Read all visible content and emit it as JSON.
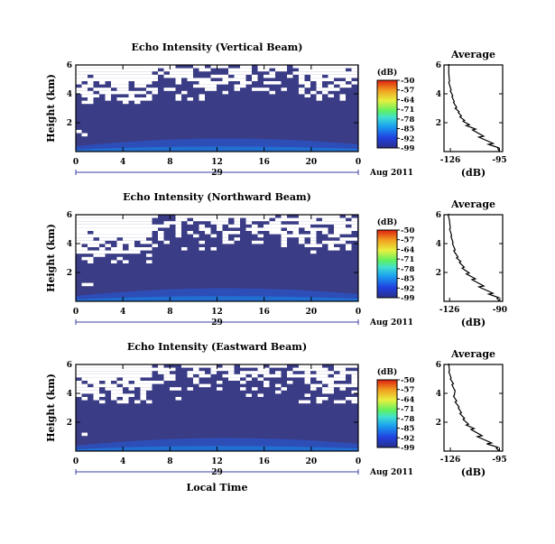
{
  "chart_data": [
    {
      "type": "heatmap",
      "title": "Echo Intensity (Vertical Beam)",
      "ylabel": "Height (km)",
      "xlabel": "",
      "x_ticks": [
        "0",
        "4",
        "8",
        "12",
        "16",
        "20",
        "0"
      ],
      "y_ticks": [
        "2",
        "4",
        "6"
      ],
      "xlim": [
        0,
        24
      ],
      "ylim": [
        0,
        6
      ],
      "date_center": "29",
      "date_right": "Aug 2011",
      "colorbar": {
        "unit": "(dB)",
        "ticks": [
          "-50",
          "-57",
          "-64",
          "-71",
          "-78",
          "-85",
          "-92",
          "-99"
        ],
        "range": [
          -99,
          -50
        ]
      },
      "field_color": "#3b3c86",
      "noise_color": "#ffffff",
      "average_profile": {
        "title": "Average",
        "xlabel": "(dB)",
        "x_ticks": [
          "-126",
          "-95"
        ],
        "y_ticks": [
          "2",
          "4",
          "6"
        ],
        "xlim": [
          -130,
          -93
        ],
        "ylim": [
          0,
          6
        ],
        "db": [
          -95,
          -96,
          -102,
          -108,
          -112,
          -116,
          -118,
          -120,
          -121,
          -123,
          -124,
          -125,
          -126,
          -127,
          -127,
          -127
        ],
        "height": [
          0.0,
          0.2,
          0.5,
          1.0,
          1.5,
          1.8,
          2.1,
          2.4,
          2.7,
          3.0,
          3.4,
          3.8,
          4.2,
          4.8,
          5.4,
          6.0
        ]
      }
    },
    {
      "type": "heatmap",
      "title": "Echo Intensity (Northward Beam)",
      "ylabel": "Height (km)",
      "xlabel": "",
      "x_ticks": [
        "0",
        "4",
        "8",
        "12",
        "16",
        "20",
        "0"
      ],
      "y_ticks": [
        "2",
        "4",
        "6"
      ],
      "xlim": [
        0,
        24
      ],
      "ylim": [
        0,
        6
      ],
      "date_center": "29",
      "date_right": "Aug 2011",
      "colorbar": {
        "unit": "(dB)",
        "ticks": [
          "-50",
          "-57",
          "-64",
          "-71",
          "-78",
          "-85",
          "-92",
          "-99"
        ],
        "range": [
          -99,
          -50
        ]
      },
      "field_color": "#3b3c86",
      "noise_color": "#ffffff",
      "average_profile": {
        "title": "Average",
        "xlabel": "(dB)",
        "x_ticks": [
          "-126",
          "-90"
        ],
        "y_ticks": [
          "2",
          "4",
          "6"
        ],
        "xlim": [
          -130,
          -88
        ],
        "ylim": [
          0,
          6
        ],
        "db": [
          -90,
          -92,
          -98,
          -105,
          -110,
          -114,
          -117,
          -119,
          -121,
          -123,
          -124,
          -125,
          -126,
          -126,
          -127
        ],
        "height": [
          0.0,
          0.2,
          0.5,
          1.0,
          1.5,
          1.9,
          2.3,
          2.7,
          3.0,
          3.5,
          4.0,
          4.5,
          5.0,
          5.5,
          6.0
        ]
      }
    },
    {
      "type": "heatmap",
      "title": "Echo Intensity (Eastward Beam)",
      "ylabel": "Height (km)",
      "xlabel": "Local Time",
      "x_ticks": [
        "0",
        "4",
        "8",
        "12",
        "16",
        "20",
        "0"
      ],
      "y_ticks": [
        "2",
        "4",
        "6"
      ],
      "xlim": [
        0,
        24
      ],
      "ylim": [
        0,
        6
      ],
      "date_center": "29",
      "date_right": "Aug 2011",
      "colorbar": {
        "unit": "(dB)",
        "ticks": [
          "-50",
          "-57",
          "-64",
          "-71",
          "-78",
          "-85",
          "-92",
          "-99"
        ],
        "range": [
          -99,
          -50
        ]
      },
      "field_color": "#3b3c86",
      "noise_color": "#ffffff",
      "average_profile": {
        "title": "Average",
        "xlabel": "(dB)",
        "x_ticks": [
          "-126",
          "-95"
        ],
        "y_ticks": [
          "2",
          "4",
          "6"
        ],
        "xlim": [
          -130,
          -93
        ],
        "ylim": [
          0,
          6
        ],
        "db": [
          -95,
          -97,
          -103,
          -109,
          -113,
          -116,
          -118,
          -120,
          -121,
          -123,
          -124,
          -123,
          -125,
          -126,
          -127,
          -127
        ],
        "height": [
          0.0,
          0.2,
          0.5,
          1.0,
          1.5,
          1.8,
          2.2,
          2.6,
          3.0,
          3.4,
          3.8,
          4.2,
          4.6,
          5.0,
          5.5,
          6.0
        ]
      }
    }
  ]
}
